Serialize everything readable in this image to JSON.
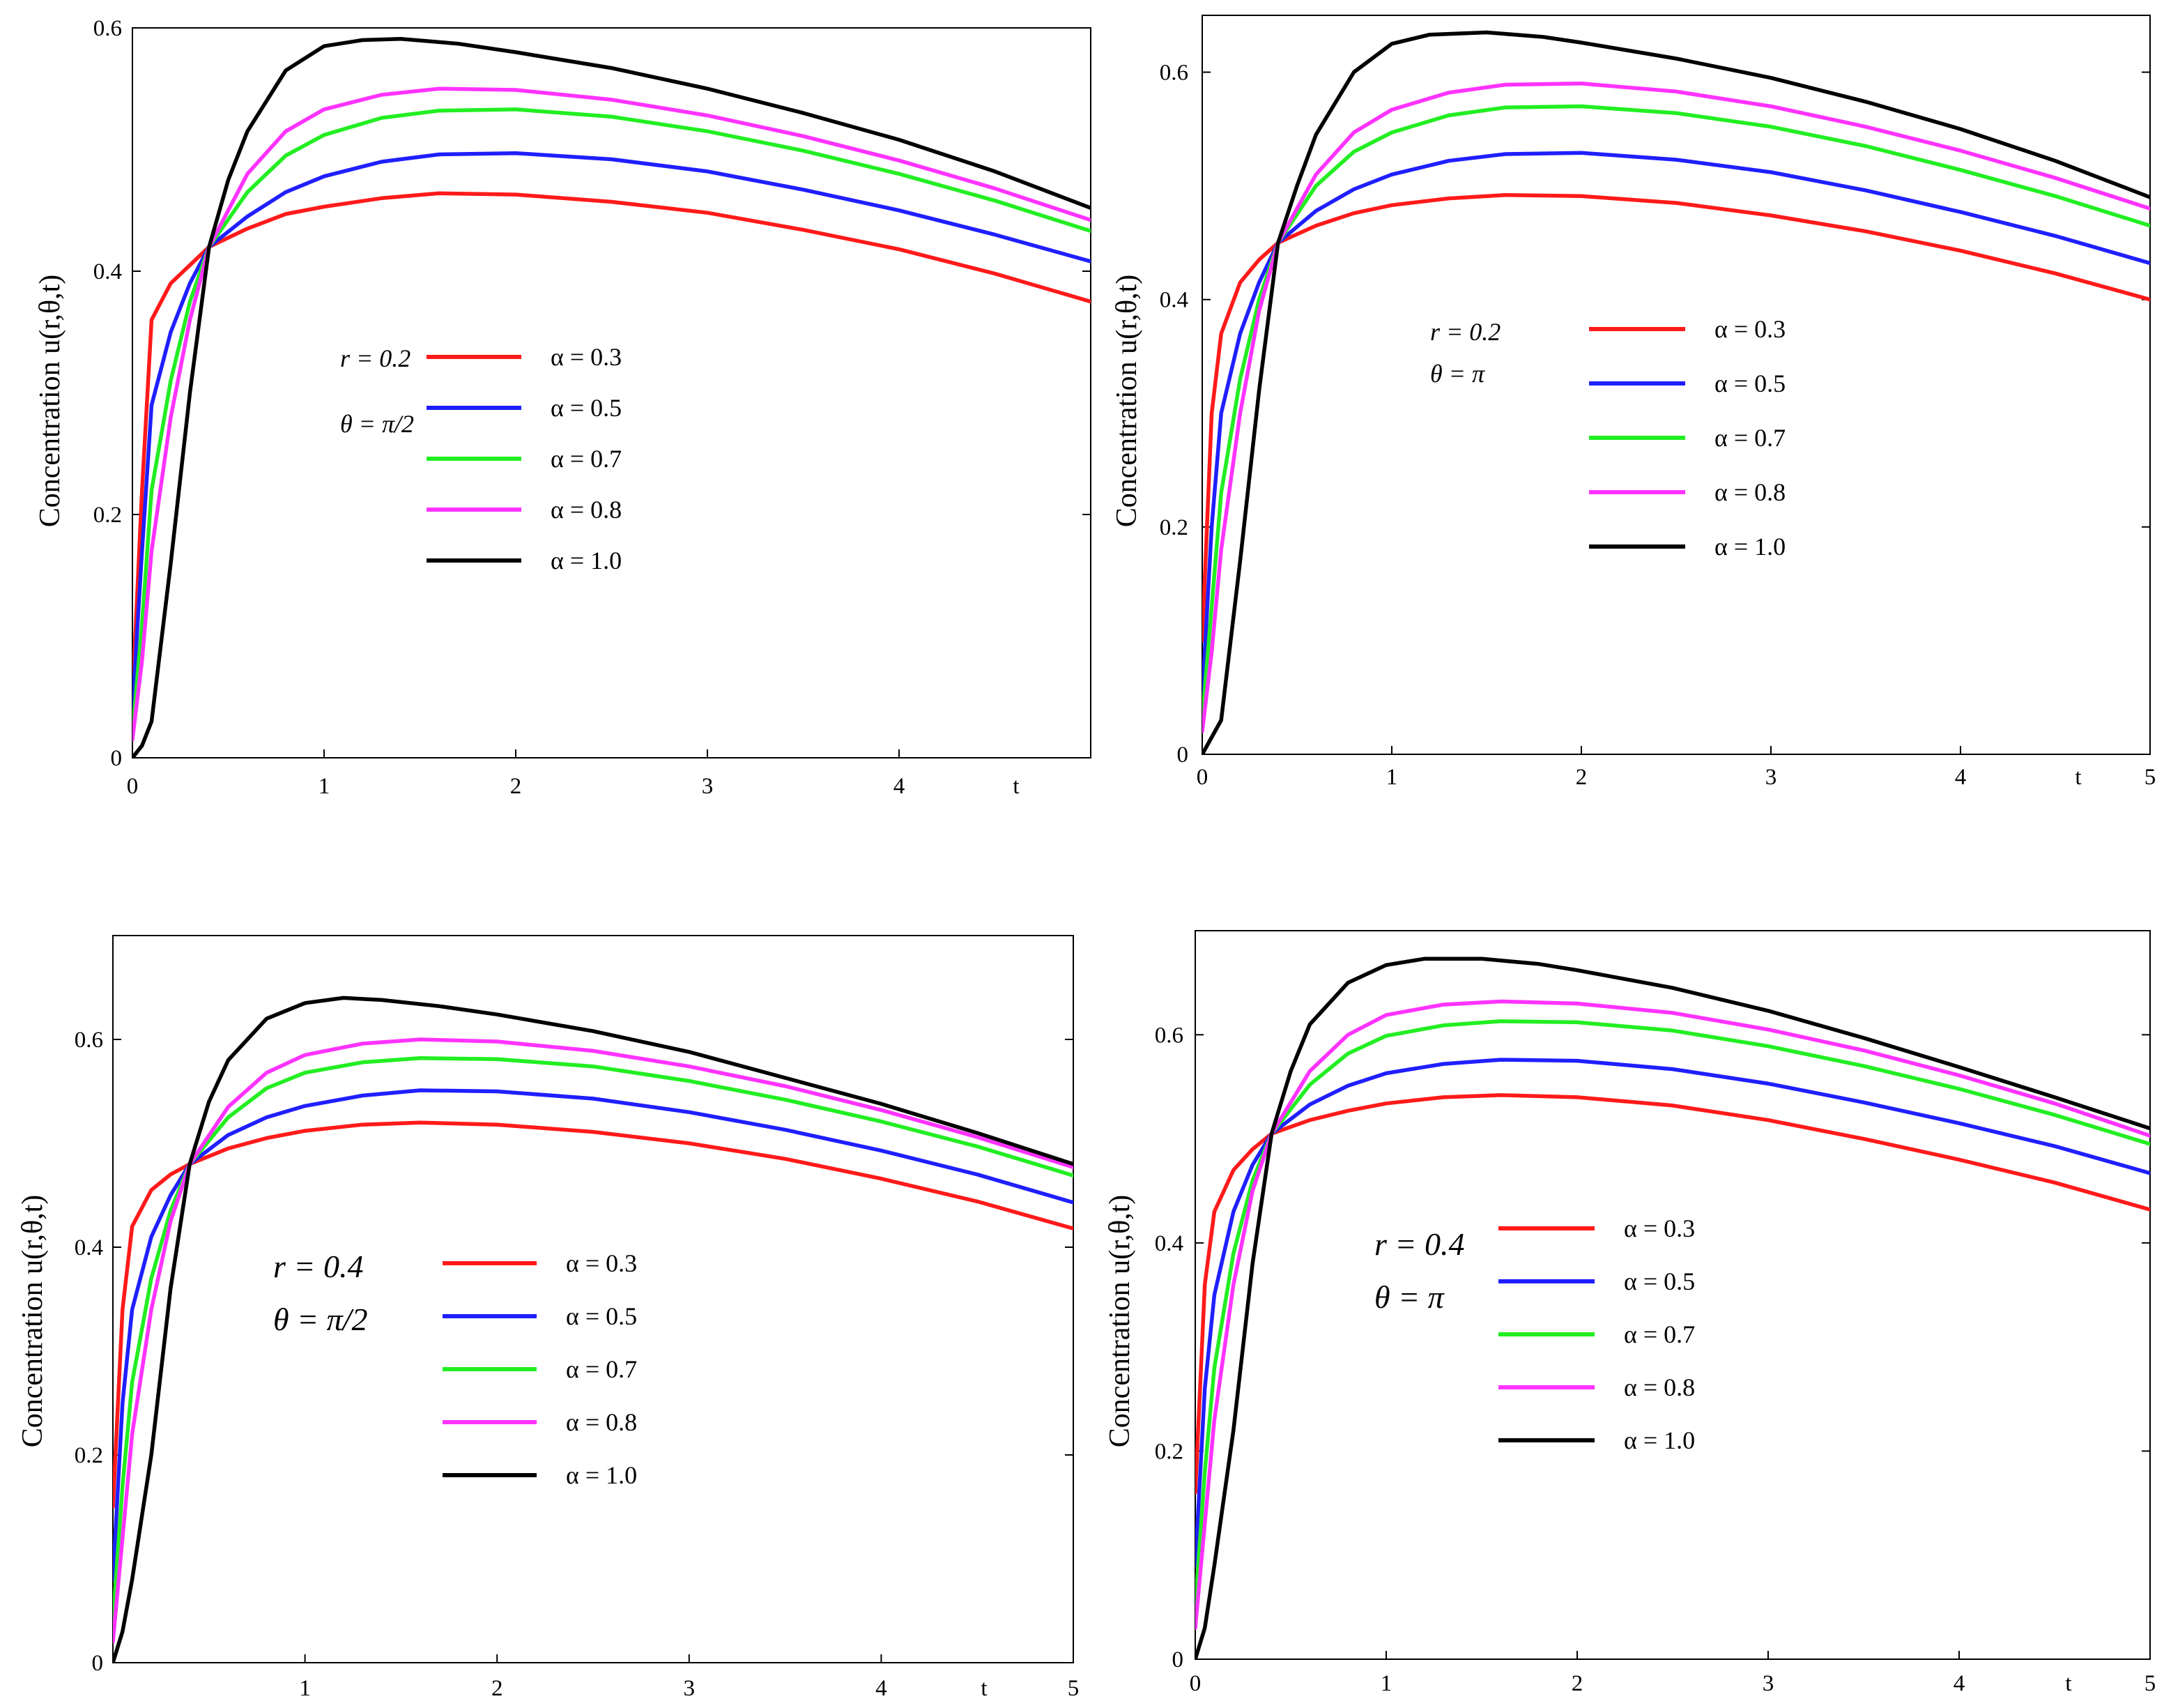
{
  "figure": {
    "description_free": true
  },
  "colors": {
    "a03": "#ff1a1a",
    "a05": "#1f1fff",
    "a07": "#22ee22",
    "a08": "#ff33ff",
    "a10": "#000000"
  },
  "chart_data": [
    {
      "type": "line",
      "ylabel": "Concentration u(r,θ,t)",
      "xlabel": "t",
      "xlim": [
        0,
        5
      ],
      "ylim": [
        0,
        0.6
      ],
      "xticks": [
        "0",
        "1",
        "2",
        "3",
        "4"
      ],
      "yticks": [
        "0",
        "0.2",
        "0.4",
        "0.6"
      ],
      "param_r": "r = 0.2",
      "param_theta": "θ = π/2",
      "legend": [
        "α = 0.3",
        "α = 0.5",
        "α = 0.7",
        "α = 0.8",
        "α = 1.0"
      ],
      "series": [
        {
          "name": "α = 0.3",
          "color": "#ff1a1a",
          "x": [
            0,
            0.05,
            0.1,
            0.2,
            0.3,
            0.4,
            0.6,
            0.8,
            1.0,
            1.3,
            1.6,
            2.0,
            2.5,
            3.0,
            3.5,
            4.0,
            4.5,
            5.0
          ],
          "y": [
            0.05,
            0.22,
            0.36,
            0.39,
            0.405,
            0.42,
            0.435,
            0.447,
            0.453,
            0.46,
            0.464,
            0.463,
            0.457,
            0.448,
            0.434,
            0.418,
            0.398,
            0.375
          ]
        },
        {
          "name": "α = 0.5",
          "color": "#1f1fff",
          "x": [
            0,
            0.05,
            0.1,
            0.2,
            0.3,
            0.4,
            0.6,
            0.8,
            1.0,
            1.3,
            1.6,
            2.0,
            2.5,
            3.0,
            3.5,
            4.0,
            4.5,
            5.0
          ],
          "y": [
            0.04,
            0.17,
            0.29,
            0.35,
            0.39,
            0.42,
            0.445,
            0.465,
            0.478,
            0.49,
            0.496,
            0.497,
            0.492,
            0.482,
            0.467,
            0.45,
            0.43,
            0.408
          ]
        },
        {
          "name": "α = 0.7",
          "color": "#22ee22",
          "x": [
            0,
            0.05,
            0.1,
            0.2,
            0.3,
            0.4,
            0.6,
            0.8,
            1.0,
            1.3,
            1.6,
            2.0,
            2.5,
            3.0,
            3.5,
            4.0,
            4.5,
            5.0
          ],
          "y": [
            0.02,
            0.11,
            0.22,
            0.31,
            0.375,
            0.42,
            0.465,
            0.495,
            0.512,
            0.526,
            0.532,
            0.533,
            0.527,
            0.515,
            0.499,
            0.48,
            0.458,
            0.433
          ]
        },
        {
          "name": "α = 0.8",
          "color": "#ff33ff",
          "x": [
            0,
            0.05,
            0.1,
            0.2,
            0.3,
            0.4,
            0.6,
            0.8,
            1.0,
            1.3,
            1.6,
            2.0,
            2.5,
            3.0,
            3.5,
            4.0,
            4.5,
            5.0
          ],
          "y": [
            0.015,
            0.08,
            0.17,
            0.28,
            0.36,
            0.42,
            0.48,
            0.515,
            0.533,
            0.545,
            0.55,
            0.549,
            0.541,
            0.528,
            0.511,
            0.491,
            0.468,
            0.442
          ]
        },
        {
          "name": "α = 1.0",
          "color": "#000000",
          "x": [
            0,
            0.05,
            0.1,
            0.2,
            0.3,
            0.4,
            0.5,
            0.6,
            0.8,
            1.0,
            1.2,
            1.4,
            1.7,
            2.0,
            2.5,
            3.0,
            3.5,
            4.0,
            4.5,
            5.0
          ],
          "y": [
            0,
            0.01,
            0.03,
            0.16,
            0.3,
            0.42,
            0.475,
            0.515,
            0.565,
            0.585,
            0.59,
            0.591,
            0.587,
            0.58,
            0.567,
            0.55,
            0.53,
            0.508,
            0.482,
            0.452
          ]
        }
      ]
    },
    {
      "type": "line",
      "ylabel": "Concentration u(r,θ,t)",
      "xlabel": "t",
      "xlim": [
        0,
        5
      ],
      "ylim": [
        0,
        0.65
      ],
      "xticks": [
        "0",
        "1",
        "2",
        "3",
        "4",
        "5"
      ],
      "yticks": [
        "0",
        "0.2",
        "0.4",
        "0.6"
      ],
      "param_r": "r = 0.2",
      "param_theta": "θ = π",
      "legend": [
        "α = 0.3",
        "α = 0.5",
        "α = 0.7",
        "α = 0.8",
        "α = 1.0"
      ],
      "series": [
        {
          "name": "α = 0.3",
          "color": "#ff1a1a",
          "x": [
            0,
            0.05,
            0.1,
            0.2,
            0.3,
            0.4,
            0.6,
            0.8,
            1.0,
            1.3,
            1.6,
            2.0,
            2.5,
            3.0,
            3.5,
            4.0,
            4.5,
            5.0
          ],
          "y": [
            0.1,
            0.3,
            0.37,
            0.415,
            0.435,
            0.45,
            0.465,
            0.476,
            0.483,
            0.489,
            0.492,
            0.491,
            0.485,
            0.474,
            0.46,
            0.443,
            0.423,
            0.4
          ]
        },
        {
          "name": "α = 0.5",
          "color": "#1f1fff",
          "x": [
            0,
            0.05,
            0.1,
            0.2,
            0.3,
            0.4,
            0.6,
            0.8,
            1.0,
            1.3,
            1.6,
            2.0,
            2.5,
            3.0,
            3.5,
            4.0,
            4.5,
            5.0
          ],
          "y": [
            0.05,
            0.2,
            0.3,
            0.37,
            0.415,
            0.45,
            0.478,
            0.497,
            0.51,
            0.522,
            0.528,
            0.529,
            0.523,
            0.512,
            0.496,
            0.477,
            0.456,
            0.432
          ]
        },
        {
          "name": "α = 0.7",
          "color": "#22ee22",
          "x": [
            0,
            0.05,
            0.1,
            0.2,
            0.3,
            0.4,
            0.6,
            0.8,
            1.0,
            1.3,
            1.6,
            2.0,
            2.5,
            3.0,
            3.5,
            4.0,
            4.5,
            5.0
          ],
          "y": [
            0.03,
            0.13,
            0.23,
            0.33,
            0.4,
            0.45,
            0.5,
            0.53,
            0.547,
            0.562,
            0.569,
            0.57,
            0.564,
            0.552,
            0.535,
            0.514,
            0.491,
            0.465
          ]
        },
        {
          "name": "α = 0.8",
          "color": "#ff33ff",
          "x": [
            0,
            0.05,
            0.1,
            0.2,
            0.3,
            0.4,
            0.6,
            0.8,
            1.0,
            1.3,
            1.6,
            2.0,
            2.5,
            3.0,
            3.5,
            4.0,
            4.5,
            5.0
          ],
          "y": [
            0.02,
            0.09,
            0.18,
            0.3,
            0.39,
            0.45,
            0.51,
            0.547,
            0.567,
            0.582,
            0.589,
            0.59,
            0.583,
            0.57,
            0.552,
            0.531,
            0.507,
            0.48
          ]
        },
        {
          "name": "α = 1.0",
          "color": "#000000",
          "x": [
            0,
            0.05,
            0.1,
            0.2,
            0.3,
            0.4,
            0.5,
            0.6,
            0.8,
            1.0,
            1.2,
            1.5,
            1.8,
            2.0,
            2.5,
            3.0,
            3.5,
            4.0,
            4.5,
            5.0
          ],
          "y": [
            0,
            0.015,
            0.03,
            0.17,
            0.32,
            0.45,
            0.5,
            0.545,
            0.6,
            0.625,
            0.633,
            0.635,
            0.631,
            0.626,
            0.612,
            0.595,
            0.574,
            0.55,
            0.522,
            0.49
          ]
        }
      ]
    },
    {
      "type": "line",
      "ylabel": "Concentration u(r,θ,t)",
      "xlabel": "t",
      "xlim": [
        0,
        5
      ],
      "ylim": [
        0,
        0.7
      ],
      "xticks": [
        "1",
        "2",
        "3",
        "4",
        "5"
      ],
      "yticks": [
        "0",
        "0.2",
        "0.4",
        "0.6"
      ],
      "param_r": "r = 0.4",
      "param_theta": "θ = π/2",
      "legend": [
        "α = 0.3",
        "α = 0.5",
        "α = 0.7",
        "α = 0.8",
        "α = 1.0"
      ],
      "series": [
        {
          "name": "α = 0.3",
          "color": "#ff1a1a",
          "x": [
            0,
            0.05,
            0.1,
            0.2,
            0.3,
            0.4,
            0.6,
            0.8,
            1.0,
            1.3,
            1.6,
            2.0,
            2.5,
            3.0,
            3.5,
            4.0,
            4.5,
            5.0
          ],
          "y": [
            0.15,
            0.34,
            0.42,
            0.455,
            0.47,
            0.48,
            0.495,
            0.505,
            0.512,
            0.518,
            0.52,
            0.518,
            0.511,
            0.5,
            0.485,
            0.466,
            0.444,
            0.418
          ]
        },
        {
          "name": "α = 0.5",
          "color": "#1f1fff",
          "x": [
            0,
            0.05,
            0.1,
            0.2,
            0.3,
            0.4,
            0.6,
            0.8,
            1.0,
            1.3,
            1.6,
            2.0,
            2.5,
            3.0,
            3.5,
            4.0,
            4.5,
            5.0
          ],
          "y": [
            0.08,
            0.25,
            0.34,
            0.41,
            0.45,
            0.48,
            0.508,
            0.525,
            0.536,
            0.546,
            0.551,
            0.55,
            0.543,
            0.53,
            0.513,
            0.493,
            0.47,
            0.443
          ]
        },
        {
          "name": "α = 0.7",
          "color": "#22ee22",
          "x": [
            0,
            0.05,
            0.1,
            0.2,
            0.3,
            0.4,
            0.6,
            0.8,
            1.0,
            1.3,
            1.6,
            2.0,
            2.5,
            3.0,
            3.5,
            4.0,
            4.5,
            5.0
          ],
          "y": [
            0.04,
            0.17,
            0.27,
            0.37,
            0.435,
            0.48,
            0.525,
            0.553,
            0.568,
            0.578,
            0.582,
            0.581,
            0.574,
            0.56,
            0.542,
            0.521,
            0.497,
            0.469
          ]
        },
        {
          "name": "α = 0.8",
          "color": "#ff33ff",
          "x": [
            0,
            0.05,
            0.1,
            0.2,
            0.3,
            0.4,
            0.6,
            0.8,
            1.0,
            1.3,
            1.6,
            2.0,
            2.5,
            3.0,
            3.5,
            4.0,
            4.5,
            5.0
          ],
          "y": [
            0.02,
            0.12,
            0.22,
            0.34,
            0.425,
            0.48,
            0.535,
            0.568,
            0.585,
            0.596,
            0.6,
            0.598,
            0.589,
            0.574,
            0.555,
            0.532,
            0.506,
            0.477
          ]
        },
        {
          "name": "α = 1.0",
          "color": "#000000",
          "x": [
            0,
            0.05,
            0.1,
            0.2,
            0.3,
            0.4,
            0.5,
            0.6,
            0.8,
            1.0,
            1.2,
            1.4,
            1.7,
            2.0,
            2.5,
            3.0,
            3.5,
            4.0,
            4.5,
            5.0
          ],
          "y": [
            0,
            0.03,
            0.08,
            0.2,
            0.36,
            0.48,
            0.54,
            0.58,
            0.62,
            0.635,
            0.64,
            0.638,
            0.632,
            0.624,
            0.608,
            0.588,
            0.563,
            0.538,
            0.51,
            0.48
          ]
        }
      ]
    },
    {
      "type": "line",
      "ylabel": "Concentration u(r,θ,t)",
      "xlabel": "t",
      "xlim": [
        0,
        5
      ],
      "ylim": [
        0,
        0.7
      ],
      "xticks": [
        "0",
        "1",
        "2",
        "3",
        "4",
        "5"
      ],
      "yticks": [
        "0",
        "0.2",
        "0.4",
        "0.6"
      ],
      "param_r": "r = 0.4",
      "param_theta": "θ = π",
      "legend": [
        "α = 0.3",
        "α = 0.5",
        "α = 0.7",
        "α = 0.8",
        "α = 1.0"
      ],
      "series": [
        {
          "name": "α = 0.3",
          "color": "#ff1a1a",
          "x": [
            0,
            0.05,
            0.1,
            0.2,
            0.3,
            0.4,
            0.6,
            0.8,
            1.0,
            1.3,
            1.6,
            2.0,
            2.5,
            3.0,
            3.5,
            4.0,
            4.5,
            5.0
          ],
          "y": [
            0.16,
            0.36,
            0.43,
            0.47,
            0.49,
            0.505,
            0.518,
            0.527,
            0.534,
            0.54,
            0.542,
            0.54,
            0.532,
            0.518,
            0.5,
            0.48,
            0.458,
            0.432
          ]
        },
        {
          "name": "α = 0.5",
          "color": "#1f1fff",
          "x": [
            0,
            0.05,
            0.1,
            0.2,
            0.3,
            0.4,
            0.6,
            0.8,
            1.0,
            1.3,
            1.6,
            2.0,
            2.5,
            3.0,
            3.5,
            4.0,
            4.5,
            5.0
          ],
          "y": [
            0.09,
            0.26,
            0.35,
            0.43,
            0.475,
            0.505,
            0.533,
            0.551,
            0.563,
            0.572,
            0.576,
            0.575,
            0.567,
            0.553,
            0.535,
            0.515,
            0.493,
            0.467
          ]
        },
        {
          "name": "α = 0.7",
          "color": "#22ee22",
          "x": [
            0,
            0.05,
            0.1,
            0.2,
            0.3,
            0.4,
            0.6,
            0.8,
            1.0,
            1.3,
            1.6,
            2.0,
            2.5,
            3.0,
            3.5,
            4.0,
            4.5,
            5.0
          ],
          "y": [
            0.05,
            0.18,
            0.28,
            0.39,
            0.46,
            0.505,
            0.552,
            0.582,
            0.599,
            0.609,
            0.613,
            0.612,
            0.604,
            0.589,
            0.57,
            0.548,
            0.523,
            0.495
          ]
        },
        {
          "name": "α = 0.8",
          "color": "#ff33ff",
          "x": [
            0,
            0.05,
            0.1,
            0.2,
            0.3,
            0.4,
            0.6,
            0.8,
            1.0,
            1.3,
            1.6,
            2.0,
            2.5,
            3.0,
            3.5,
            4.0,
            4.5,
            5.0
          ],
          "y": [
            0.03,
            0.13,
            0.23,
            0.36,
            0.45,
            0.505,
            0.565,
            0.6,
            0.619,
            0.629,
            0.632,
            0.63,
            0.621,
            0.605,
            0.585,
            0.561,
            0.534,
            0.503
          ]
        },
        {
          "name": "α = 1.0",
          "color": "#000000",
          "x": [
            0,
            0.05,
            0.1,
            0.2,
            0.3,
            0.4,
            0.5,
            0.6,
            0.8,
            1.0,
            1.2,
            1.5,
            1.8,
            2.0,
            2.5,
            3.0,
            3.5,
            4.0,
            4.5,
            5.0
          ],
          "y": [
            0,
            0.03,
            0.09,
            0.22,
            0.38,
            0.505,
            0.565,
            0.61,
            0.65,
            0.667,
            0.673,
            0.673,
            0.668,
            0.662,
            0.645,
            0.623,
            0.597,
            0.569,
            0.54,
            0.51
          ]
        }
      ]
    }
  ]
}
